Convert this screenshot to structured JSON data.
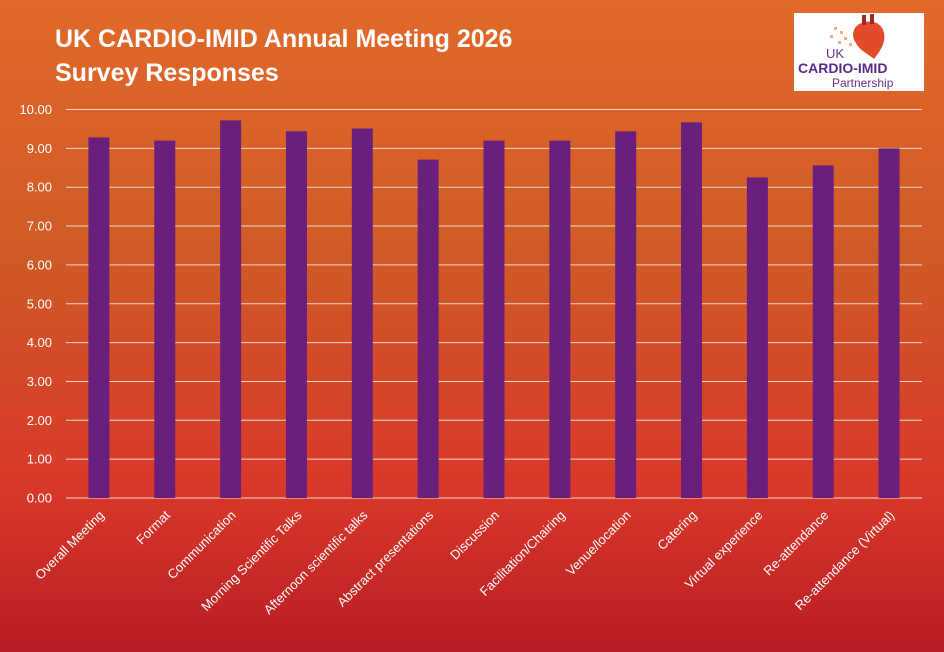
{
  "title_line1": "UK CARDIO-IMID Annual Meeting 2026",
  "title_line2": "Survey Responses",
  "logo": {
    "line1": "UK",
    "line2": "CARDIO-IMID",
    "line3": "Partnership"
  },
  "colors": {
    "bar": "#6b1f7c",
    "grid": "#f3d7c8",
    "text": "#ffffff"
  },
  "chart_data": {
    "type": "bar",
    "title": "UK CARDIO-IMID Annual Meeting 2026 Survey Responses",
    "xlabel": "",
    "ylabel": "",
    "ylim": [
      0,
      10
    ],
    "yticks": [
      "0.00",
      "1.00",
      "2.00",
      "3.00",
      "4.00",
      "5.00",
      "6.00",
      "7.00",
      "8.00",
      "9.00",
      "10.00"
    ],
    "grid": true,
    "categories": [
      "Overall Meeting",
      "Format",
      "Communication",
      "Morning Scientific Talks",
      "Afternoon scientific talks",
      "Abstract presentations",
      "Discussion",
      "Facilitation/Chairing",
      "Venue/location",
      "Catering",
      "Virtual experience",
      "Re-attendance",
      "Re-attendance (Virtual)"
    ],
    "values": [
      9.28,
      9.2,
      9.72,
      9.44,
      9.51,
      8.71,
      9.2,
      9.2,
      9.44,
      9.67,
      8.25,
      8.56,
      9.0
    ]
  }
}
